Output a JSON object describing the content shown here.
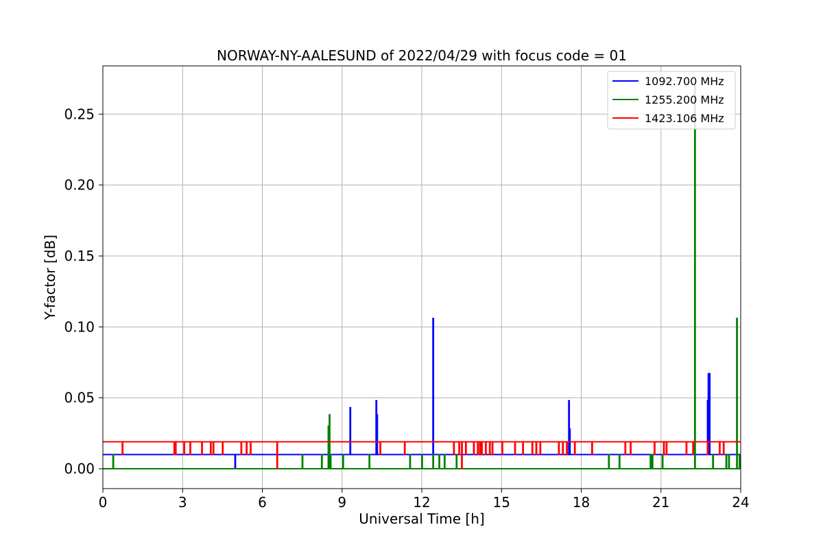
{
  "chart_data": {
    "type": "line",
    "title": "NORWAY-NY-AALESUND of 2022/04/29 with focus code = 01",
    "xlabel": "Universal Time [h]",
    "ylabel": "Y-factor [dB]",
    "xlim": [
      0,
      24
    ],
    "ylim": [
      -0.014,
      0.284
    ],
    "x_ticks": [
      0,
      3,
      6,
      9,
      12,
      15,
      18,
      21,
      24
    ],
    "x_tick_labels": [
      "0",
      "3",
      "6",
      "9",
      "12",
      "15",
      "18",
      "21",
      "24"
    ],
    "y_ticks": [
      0.0,
      0.05,
      0.1,
      0.15,
      0.2,
      0.25
    ],
    "y_tick_labels": [
      "0.00",
      "0.05",
      "0.10",
      "0.15",
      "0.20",
      "0.25"
    ],
    "grid": true,
    "legend_position": "top-right",
    "series": [
      {
        "name": "1092.700 MHz",
        "color": "#0000ff",
        "baseline": 0.01,
        "spikes": [
          [
            4.97,
            0.0
          ],
          [
            9.3,
            0.043
          ],
          [
            10.28,
            0.048
          ],
          [
            10.31,
            0.038
          ],
          [
            12.42,
            0.106
          ],
          [
            17.53,
            0.048
          ],
          [
            17.56,
            0.028
          ],
          [
            22.75,
            0.048
          ],
          [
            22.78,
            0.067
          ],
          [
            22.82,
            0.067
          ]
        ]
      },
      {
        "name": "1255.200 MHz",
        "color": "#008000",
        "baseline": 0.0,
        "spikes": [
          [
            0.38,
            0.01
          ],
          [
            7.5,
            0.01
          ],
          [
            8.23,
            0.01
          ],
          [
            8.48,
            0.03
          ],
          [
            8.52,
            0.038
          ],
          [
            8.56,
            0.01
          ],
          [
            9.03,
            0.01
          ],
          [
            10.02,
            0.01
          ],
          [
            11.55,
            0.01
          ],
          [
            12.0,
            0.01
          ],
          [
            12.42,
            0.01
          ],
          [
            12.65,
            0.01
          ],
          [
            12.85,
            0.01
          ],
          [
            13.3,
            0.01
          ],
          [
            19.03,
            0.01
          ],
          [
            19.43,
            0.01
          ],
          [
            20.6,
            0.01
          ],
          [
            20.67,
            0.01
          ],
          [
            21.05,
            0.01
          ],
          [
            22.27,
            0.27
          ],
          [
            22.95,
            0.01
          ],
          [
            23.45,
            0.01
          ],
          [
            23.55,
            0.01
          ],
          [
            23.85,
            0.106
          ],
          [
            23.95,
            0.01
          ]
        ]
      },
      {
        "name": "1423.106 MHz",
        "color": "#ff0000",
        "baseline": 0.019,
        "spikes": [
          [
            0.73,
            0.01
          ],
          [
            2.68,
            0.01
          ],
          [
            2.73,
            0.01
          ],
          [
            3.05,
            0.01
          ],
          [
            3.28,
            0.01
          ],
          [
            3.72,
            0.01
          ],
          [
            4.05,
            0.01
          ],
          [
            4.15,
            0.01
          ],
          [
            4.5,
            0.01
          ],
          [
            5.2,
            0.01
          ],
          [
            5.4,
            0.01
          ],
          [
            5.55,
            0.01
          ],
          [
            6.55,
            0.0
          ],
          [
            10.43,
            0.01
          ],
          [
            11.35,
            0.01
          ],
          [
            13.2,
            0.01
          ],
          [
            13.4,
            0.01
          ],
          [
            13.5,
            0.0
          ],
          [
            13.65,
            0.01
          ],
          [
            13.95,
            0.01
          ],
          [
            14.1,
            0.01
          ],
          [
            14.18,
            0.01
          ],
          [
            14.25,
            0.01
          ],
          [
            14.4,
            0.01
          ],
          [
            14.55,
            0.01
          ],
          [
            14.65,
            0.01
          ],
          [
            15.02,
            0.01
          ],
          [
            15.5,
            0.01
          ],
          [
            15.8,
            0.01
          ],
          [
            16.15,
            0.01
          ],
          [
            16.3,
            0.01
          ],
          [
            16.45,
            0.01
          ],
          [
            17.15,
            0.01
          ],
          [
            17.3,
            0.01
          ],
          [
            17.45,
            0.01
          ],
          [
            17.75,
            0.01
          ],
          [
            18.4,
            0.01
          ],
          [
            19.65,
            0.01
          ],
          [
            19.85,
            0.01
          ],
          [
            20.75,
            0.01
          ],
          [
            21.1,
            0.01
          ],
          [
            21.2,
            0.01
          ],
          [
            21.95,
            0.01
          ],
          [
            22.2,
            0.01
          ],
          [
            22.75,
            0.01
          ],
          [
            23.2,
            0.01
          ],
          [
            23.35,
            0.01
          ]
        ]
      }
    ]
  }
}
